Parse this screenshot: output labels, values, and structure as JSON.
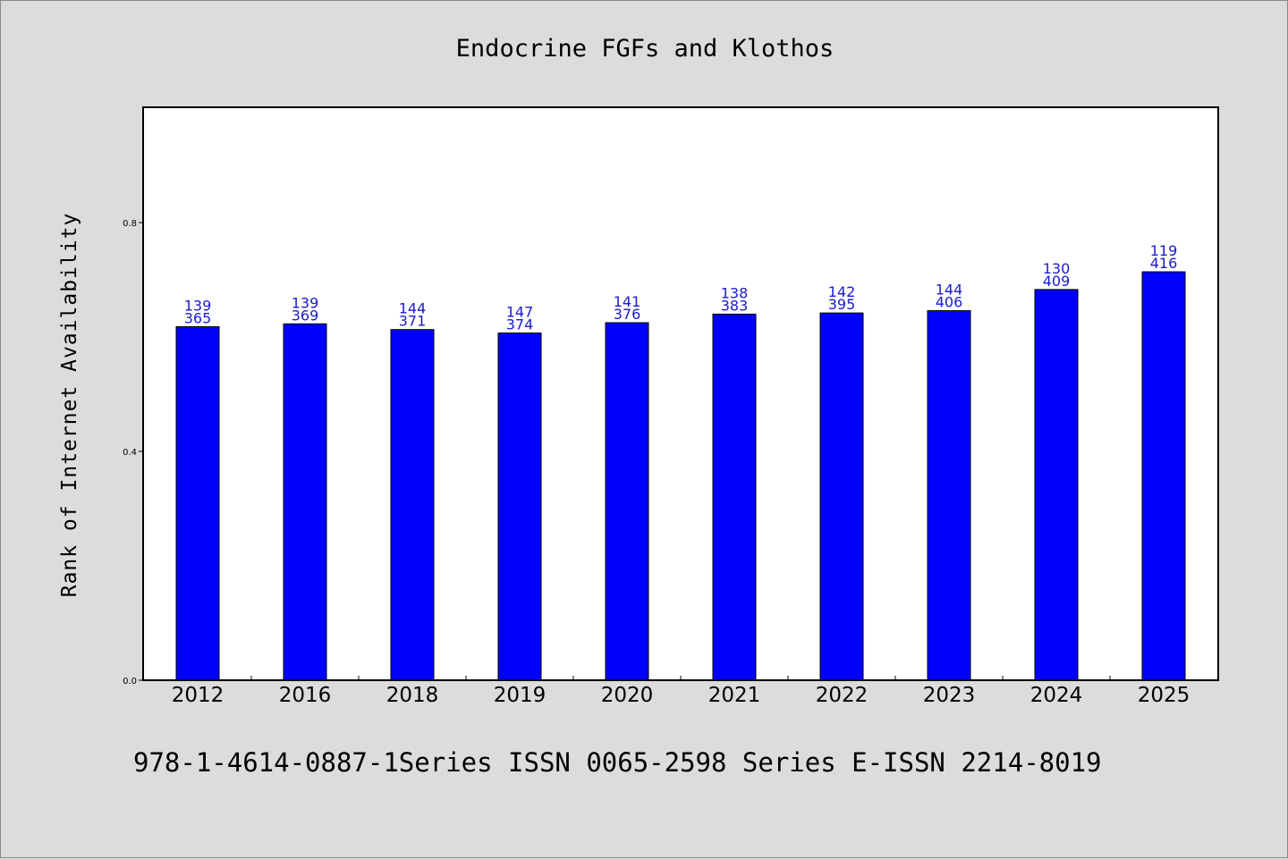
{
  "chart_data": {
    "type": "bar",
    "title": "Endocrine FGFs and Klothos",
    "xlabel": "",
    "ylabel": "Rank of Internet Availability",
    "categories": [
      "2012",
      "2016",
      "2018",
      "2019",
      "2020",
      "2021",
      "2022",
      "2023",
      "2024",
      "2025"
    ],
    "values": [
      0.618,
      0.623,
      0.613,
      0.607,
      0.625,
      0.64,
      0.642,
      0.646,
      0.683,
      0.714
    ],
    "label_top": [
      "139",
      "139",
      "144",
      "147",
      "141",
      "138",
      "142",
      "144",
      "130",
      "119"
    ],
    "label_bottom": [
      "365",
      "369",
      "371",
      "374",
      "376",
      "383",
      "395",
      "406",
      "409",
      "416"
    ],
    "ylim": [
      0,
      1.0
    ],
    "yticks": [
      0.0,
      0.4,
      0.8
    ],
    "ytick_labels": [
      "0.0",
      "0.4",
      "0.8"
    ],
    "bar_color": "#0000ff",
    "label_color": "#1a1acc",
    "grid": false,
    "legend": "none"
  },
  "footer": {
    "text": "978-1-4614-0887-1Series ISSN 0065-2598 Series E-ISSN 2214-8019"
  },
  "colors": {
    "background": "#dcdcdc",
    "plot_area": "#ffffff",
    "bar": "#0000ff"
  }
}
